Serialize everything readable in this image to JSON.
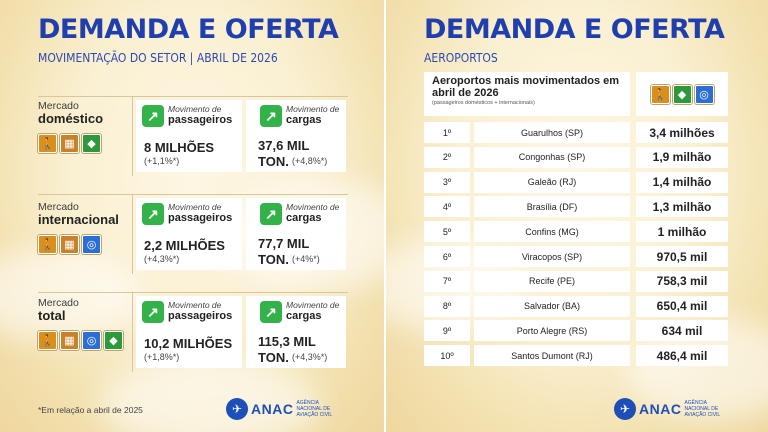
{
  "left": {
    "title": "DEMANDA E OFERTA",
    "subtitle": "MOVIMENTAÇÃO DO SETOR | ABRIL DE 2026",
    "blocks": [
      {
        "mercado": "Mercado",
        "tipo": "doméstico",
        "passageiros_small": "Movimento de",
        "passageiros_big": "passageiros",
        "passageiros_val": "8 MILHÕES",
        "passageiros_pct": "(+1,1%*)",
        "cargas_small": "Movimento de",
        "cargas_big": "cargas",
        "cargas_val1": "37,6 MIL",
        "cargas_val2": "TON.",
        "cargas_pct": "(+4,8%*)"
      },
      {
        "mercado": "Mercado",
        "tipo": "internacional",
        "passageiros_small": "Movimento de",
        "passageiros_big": "passageiros",
        "passageiros_val": "2,2 MILHÕES",
        "passageiros_pct": "(+4,3%*)",
        "cargas_small": "Movimento de",
        "cargas_big": "cargas",
        "cargas_val1": "77,7 MIL",
        "cargas_val2": "TON.",
        "cargas_pct": "(+4%*)"
      },
      {
        "mercado": "Mercado",
        "tipo": "total",
        "passageiros_small": "Movimento de",
        "passageiros_big": "passageiros",
        "passageiros_val": "10,2 MILHÕES",
        "passageiros_pct": "(+1,8%*)",
        "cargas_small": "Movimento de",
        "cargas_big": "cargas",
        "cargas_val1": "115,3 MIL",
        "cargas_val2": "TON.",
        "cargas_pct": "(+4,3%*)"
      }
    ],
    "footnote": "*Em relação a abril de 2025"
  },
  "right": {
    "title": "DEMANDA E OFERTA",
    "subtitle": "AEROPORTOS",
    "table_title": "Aeroportos mais movimentados em abril de 2026",
    "table_note": "(passageiros domésticos + internacionais)",
    "rows": [
      {
        "rank": "1º",
        "airport": "Guarulhos (SP)",
        "value": "3,4 milhões"
      },
      {
        "rank": "2º",
        "airport": "Congonhas (SP)",
        "value": "1,9 milhão"
      },
      {
        "rank": "3º",
        "airport": "Galeão (RJ)",
        "value": "1,4 milhão"
      },
      {
        "rank": "4º",
        "airport": "Brasília (DF)",
        "value": "1,3 milhão"
      },
      {
        "rank": "5º",
        "airport": "Confins (MG)",
        "value": "1 milhão"
      },
      {
        "rank": "6º",
        "airport": "Viracopos (SP)",
        "value": "970,5 mil"
      },
      {
        "rank": "7º",
        "airport": "Recife (PE)",
        "value": "758,3 mil"
      },
      {
        "rank": "8º",
        "airport": "Salvador (BA)",
        "value": "650,4 mil"
      },
      {
        "rank": "9º",
        "airport": "Porto Alegre (RS)",
        "value": "634 mil"
      },
      {
        "rank": "10º",
        "airport": "Santos Dumont (RJ)",
        "value": "486,4 mil"
      }
    ]
  },
  "logo": {
    "word": "ANAC",
    "tagline": "AGÊNCIA NACIONAL DE AVIAÇÃO CIVIL"
  },
  "icons": {
    "passenger": "person-with-luggage-icon",
    "cargo": "cargo-box-icon",
    "domestic": "brazil-flag-icon",
    "international": "globe-icon",
    "growth": "arrow-up-right-icon",
    "logo": "airplane-logo-icon"
  },
  "colors": {
    "title_blue": "#1f3fae",
    "badge_green": "#34b24a",
    "icon_orange": "#d98e1e",
    "flag_green": "#2c9a3a",
    "globe_blue": "#2c6fd4"
  }
}
